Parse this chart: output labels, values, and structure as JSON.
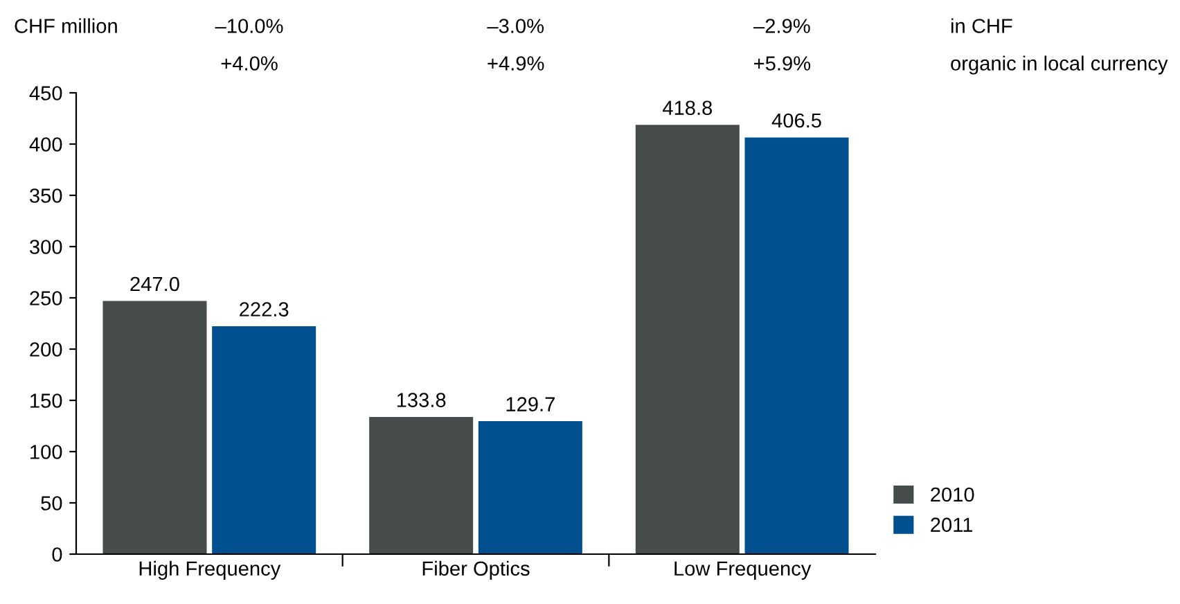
{
  "chart_data": {
    "type": "bar",
    "ylabel": "CHF million",
    "categories": [
      "High Frequency",
      "Fiber Optics",
      "Low Frequency"
    ],
    "series": [
      {
        "name": "2010",
        "color": "#464c4c",
        "values": [
          247.0,
          133.8,
          418.8
        ],
        "value_labels": [
          "247.0",
          "133.8",
          "418.8"
        ]
      },
      {
        "name": "2011",
        "color": "#00508f",
        "values": [
          222.3,
          129.7,
          406.5
        ],
        "value_labels": [
          "222.3",
          "129.7",
          "406.5"
        ]
      }
    ],
    "ylim": [
      0,
      450
    ],
    "yticks": [
      0,
      50,
      100,
      150,
      200,
      250,
      300,
      350,
      400,
      450
    ],
    "grid": false,
    "legend": "bottom right",
    "annotations": [
      "–10.0%",
      "–3.0%",
      "–2.9%",
      "in CHF",
      "+4.0%",
      "+4.9%",
      "+5.9%",
      "organic in local currency"
    ]
  }
}
